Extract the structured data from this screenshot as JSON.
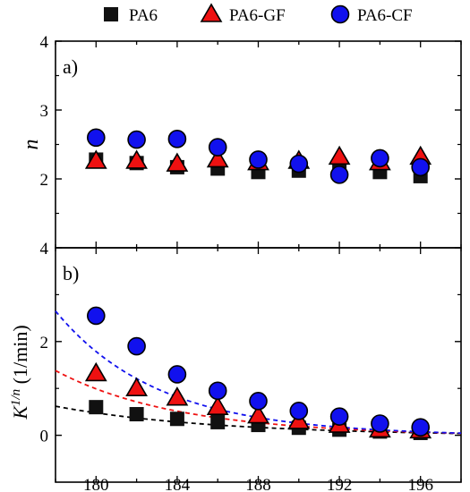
{
  "chart_data": {
    "type": "scatter",
    "legend": {
      "placement": "top",
      "entries": [
        {
          "name": "PA6",
          "marker": "square",
          "color": "#111111"
        },
        {
          "name": "PA6-GF",
          "marker": "triangle",
          "color": "#ee1111"
        },
        {
          "name": "PA6-CF",
          "marker": "circle",
          "color": "#1111ee"
        }
      ]
    },
    "x": [
      180,
      182,
      184,
      186,
      188,
      190,
      192,
      194,
      196
    ],
    "x_ticks": [
      180,
      184,
      188,
      192,
      196
    ],
    "xlim": [
      178,
      198
    ],
    "panels": [
      {
        "label": "a)",
        "ylabel": "n",
        "ylim": [
          1,
          4
        ],
        "y_ticks": [
          2,
          3,
          4
        ],
        "series": [
          {
            "name": "PA6",
            "values": [
              2.28,
              2.23,
              2.17,
              2.15,
              2.1,
              2.12,
              2.15,
              2.1,
              2.04
            ]
          },
          {
            "name": "PA6-GF",
            "values": [
              2.26,
              2.26,
              2.22,
              2.28,
              2.24,
              2.26,
              2.32,
              2.24,
              2.32
            ]
          },
          {
            "name": "PA6-CF",
            "values": [
              2.6,
              2.57,
              2.58,
              2.46,
              2.28,
              2.22,
              2.06,
              2.3,
              2.17
            ]
          }
        ]
      },
      {
        "label": "b)",
        "ylabel_main": "K",
        "ylabel_sup": "1/n",
        "ylabel_unit": " (1/min)",
        "ylim": [
          -1,
          4
        ],
        "y_ticks": [
          0,
          2,
          4
        ],
        "series": [
          {
            "name": "PA6",
            "values": [
              0.6,
              0.45,
              0.35,
              0.28,
              0.22,
              0.16,
              0.12,
              0.08,
              0.05
            ],
            "fit": [
              0.62,
              0.04
            ]
          },
          {
            "name": "PA6-GF",
            "values": [
              1.32,
              1.0,
              0.8,
              0.6,
              0.42,
              0.3,
              0.22,
              0.12,
              0.1
            ],
            "fit": [
              1.38,
              0.07
            ]
          },
          {
            "name": "PA6-CF",
            "values": [
              2.55,
              1.9,
              1.3,
              0.95,
              0.73,
              0.52,
              0.4,
              0.25,
              0.17
            ],
            "fit": [
              2.65,
              0.07
            ]
          }
        ]
      }
    ]
  }
}
